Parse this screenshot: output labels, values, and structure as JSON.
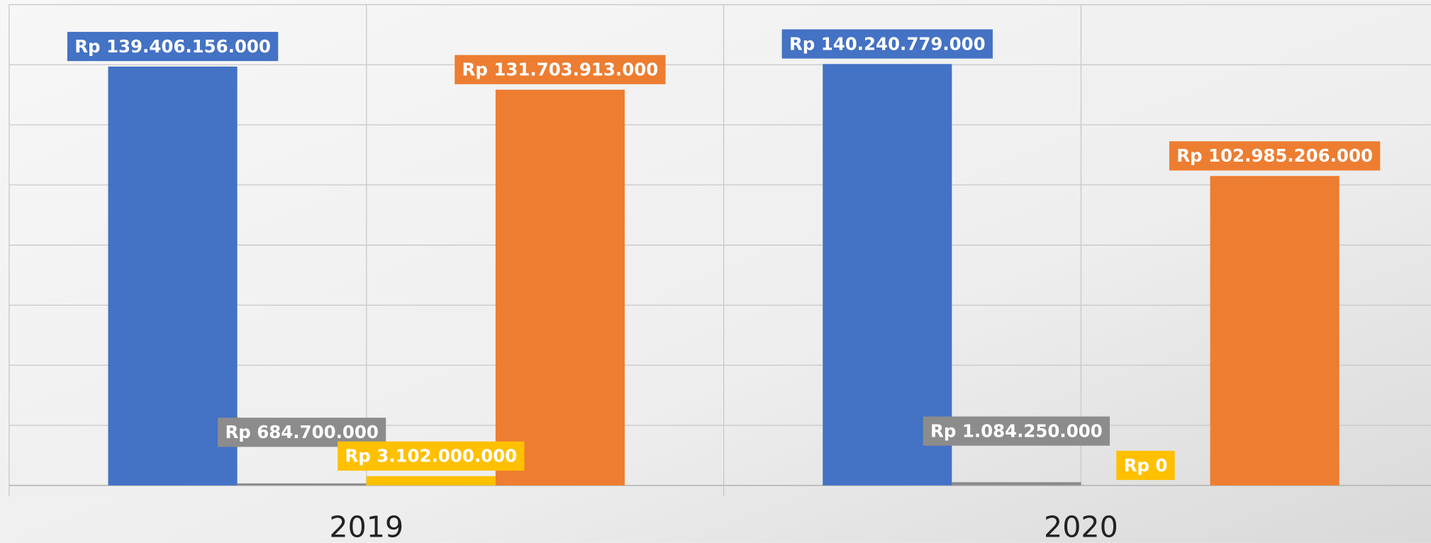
{
  "chart_data": {
    "type": "bar",
    "categories": [
      "2019",
      "2020"
    ],
    "series": [
      {
        "color": "#4472c4",
        "values": [
          139406156000,
          140240779000
        ],
        "value_labels": [
          "Rp 139.406.156.000",
          "Rp 140.240.779.000"
        ]
      },
      {
        "color": "#8c8c8c",
        "values": [
          684700000,
          1084250000
        ],
        "value_labels": [
          "Rp 684.700.000",
          "Rp 1.084.250.000"
        ]
      },
      {
        "color": "#ffc000",
        "values": [
          3102000000,
          0
        ],
        "value_labels": [
          "Rp 3.102.000.000",
          "Rp 0"
        ]
      },
      {
        "color": "#ed7d31",
        "values": [
          131703913000,
          102985206000
        ],
        "value_labels": [
          "Rp 131.703.913.000",
          "Rp 102.985.206.000"
        ]
      }
    ],
    "ylim": [
      0,
      160000000000
    ],
    "yticks": [
      0,
      20000000000,
      40000000000,
      60000000000,
      80000000000,
      100000000000,
      120000000000,
      140000000000,
      160000000000
    ],
    "grid": true
  }
}
